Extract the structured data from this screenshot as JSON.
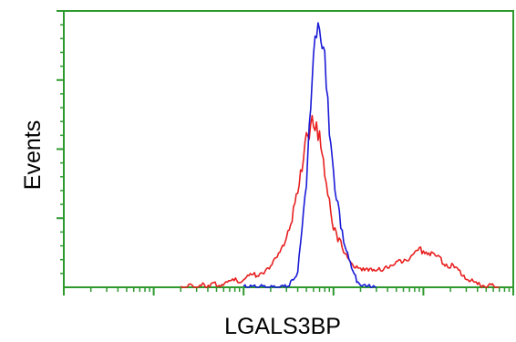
{
  "chart_data": {
    "type": "line",
    "title": "",
    "xlabel": "LGALS3BP",
    "ylabel": "Events",
    "xscale": "log",
    "xlim": [
      1,
      100000
    ],
    "ylim": [
      0,
      1
    ],
    "grid": false,
    "legend": "none",
    "axis_color": "#2e9a2e",
    "series": [
      {
        "color": "#e82020",
        "x": [
          20,
          50,
          100,
          200,
          300,
          400,
          500,
          600,
          700,
          800,
          900,
          1000,
          1300,
          1700,
          2000,
          3000,
          4000,
          5000,
          10000,
          20000,
          40000,
          70000
        ],
        "y": [
          0.0,
          0.01,
          0.03,
          0.07,
          0.17,
          0.35,
          0.55,
          0.62,
          0.55,
          0.42,
          0.32,
          0.22,
          0.14,
          0.08,
          0.06,
          0.06,
          0.07,
          0.09,
          0.14,
          0.08,
          0.01,
          0.0
        ]
      },
      {
        "color": "#1a1ad8",
        "x": [
          100,
          300,
          400,
          500,
          600,
          700,
          800,
          900,
          1000,
          1300,
          1700,
          2000,
          2500,
          3000
        ],
        "y": [
          0.0,
          0.0,
          0.05,
          0.4,
          0.88,
          0.98,
          0.86,
          0.6,
          0.42,
          0.16,
          0.04,
          0.01,
          0.0,
          0.0
        ]
      }
    ]
  }
}
